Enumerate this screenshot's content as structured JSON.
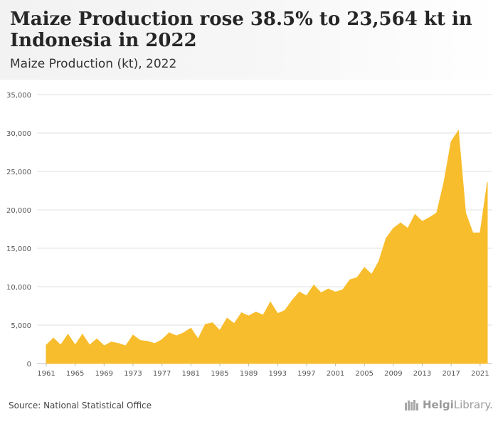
{
  "title": "Maize Production rose 38.5% to 23,564 kt in Indonesia in 2022",
  "subtitle": "Maize Production (kt), 2022",
  "source": "Source: National Statistical Office",
  "brand": {
    "bold": "Helgi",
    "light": "Library."
  },
  "chart_data": {
    "type": "area",
    "title": "Maize Production rose 38.5% to 23,564 kt in Indonesia in 2022",
    "subtitle": "Maize Production (kt), 2022",
    "xlabel": "",
    "ylabel": "",
    "ylim": [
      0,
      35000
    ],
    "yticks": [
      0,
      5000,
      10000,
      15000,
      20000,
      25000,
      30000,
      35000
    ],
    "ytick_labels": [
      "0",
      "5,000",
      "10,000",
      "15,000",
      "20,000",
      "25,000",
      "30,000",
      "35,000"
    ],
    "xticks": [
      1961,
      1965,
      1969,
      1973,
      1977,
      1981,
      1985,
      1989,
      1993,
      1997,
      2001,
      2005,
      2009,
      2013,
      2017,
      2021
    ],
    "grid": true,
    "color": "#f8bd2d",
    "series": [
      {
        "x": [
          1961,
          1962,
          1963,
          1964,
          1965,
          1966,
          1967,
          1968,
          1969,
          1970,
          1971,
          1972,
          1973,
          1974,
          1975,
          1976,
          1977,
          1978,
          1979,
          1980,
          1981,
          1982,
          1983,
          1984,
          1985,
          1986,
          1987,
          1988,
          1989,
          1990,
          1991,
          1992,
          1993,
          1994,
          1995,
          1996,
          1997,
          1998,
          1999,
          2000,
          2001,
          2002,
          2003,
          2004,
          2005,
          2006,
          2007,
          2008,
          2009,
          2010,
          2011,
          2012,
          2013,
          2014,
          2015,
          2016,
          2017,
          2018,
          2019,
          2020,
          2021,
          2022
        ],
        "values": [
          2400,
          3300,
          2400,
          3800,
          2400,
          3800,
          2400,
          3200,
          2300,
          2800,
          2600,
          2300,
          3700,
          3000,
          2900,
          2600,
          3100,
          4000,
          3600,
          4000,
          4600,
          3200,
          5100,
          5300,
          4300,
          5900,
          5200,
          6600,
          6200,
          6700,
          6300,
          8000,
          6500,
          6900,
          8200,
          9300,
          8800,
          10200,
          9200,
          9700,
          9300,
          9600,
          10900,
          11200,
          12500,
          11600,
          13300,
          16300,
          17600,
          18300,
          17600,
          19400,
          18500,
          19000,
          19600,
          23600,
          28900,
          30300,
          19600,
          17000,
          17000,
          23564
        ]
      }
    ]
  }
}
